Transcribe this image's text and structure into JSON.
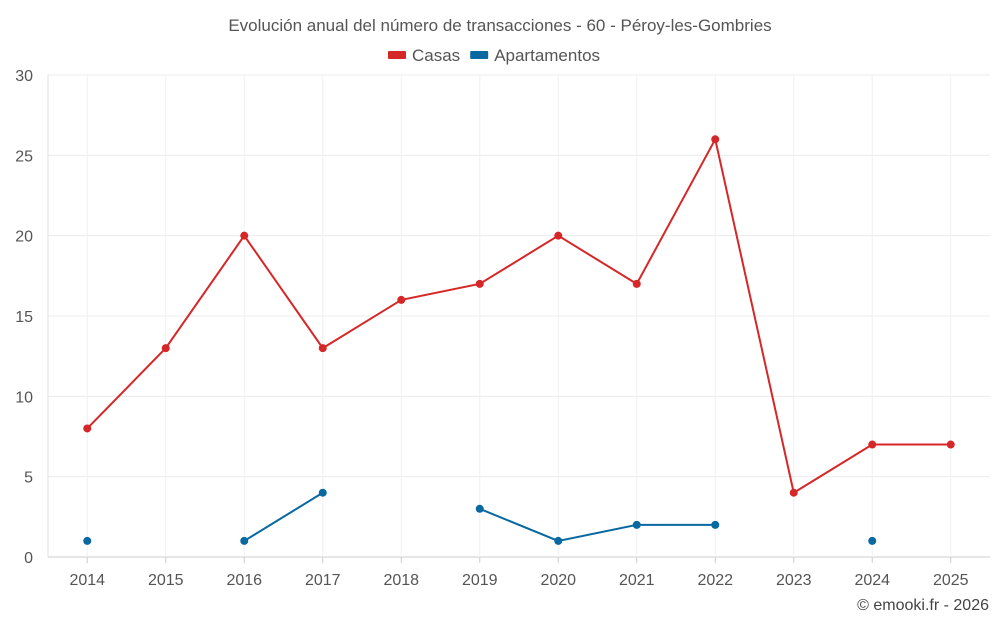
{
  "chart_data": {
    "type": "line",
    "title": "Evolución anual del número de transacciones - 60 - Péroy-les-Gombries",
    "categories": [
      "2014",
      "2015",
      "2016",
      "2017",
      "2018",
      "2019",
      "2020",
      "2021",
      "2022",
      "2023",
      "2024",
      "2025"
    ],
    "series": [
      {
        "name": "Casas",
        "color": "#d62728",
        "values": [
          8,
          13,
          20,
          13,
          16,
          17,
          20,
          17,
          26,
          4,
          7,
          7
        ]
      },
      {
        "name": "Apartamentos",
        "color": "#0868a0",
        "values": [
          1,
          null,
          1,
          4,
          null,
          3,
          1,
          2,
          2,
          null,
          1,
          null
        ]
      }
    ],
    "ylim": [
      0,
      30
    ],
    "yticks": [
      0,
      5,
      10,
      15,
      20,
      25,
      30
    ],
    "xlabel": "",
    "ylabel": "",
    "grid": true,
    "legend": "top-center"
  },
  "credit": "© emooki.fr - 2026"
}
